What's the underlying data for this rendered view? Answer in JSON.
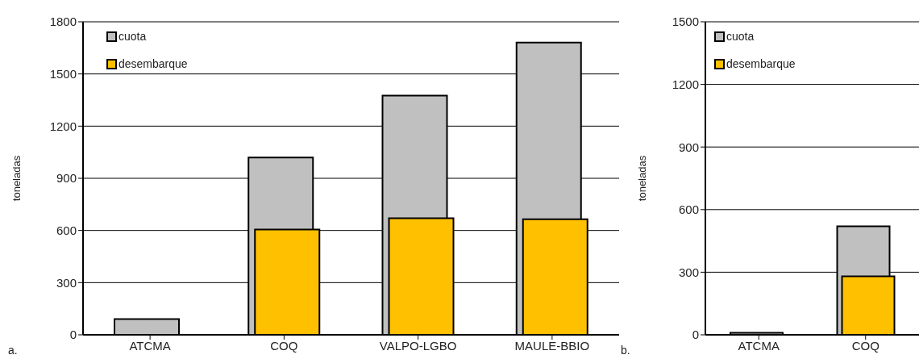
{
  "chart_data": [
    {
      "type": "bar",
      "categories": [
        "ATCMA",
        "COQ",
        "VALPO-LGBO",
        "MAULE-BBIO"
      ],
      "ylabel": "toneladas",
      "ylim": [
        0,
        1800
      ],
      "yticks": [
        0,
        300,
        600,
        900,
        1200,
        1500,
        1800
      ],
      "grid": "y",
      "legend": "top left",
      "annotations": [
        "a."
      ],
      "series": [
        {
          "name": "cuota",
          "color": "#c0c0c0",
          "values": [
            90,
            1020,
            1375,
            1680
          ]
        },
        {
          "name": "desembarque",
          "color": "#ffc000",
          "values": [
            0,
            605,
            670,
            665
          ]
        }
      ]
    },
    {
      "type": "bar",
      "categories": [
        "ATCMA",
        "COQ"
      ],
      "ylabel": "toneladas",
      "ylim": [
        0,
        1500
      ],
      "yticks": [
        0,
        300,
        600,
        900,
        1200,
        1500
      ],
      "grid": "y",
      "legend": "top left",
      "annotations": [
        "b."
      ],
      "series": [
        {
          "name": "cuota",
          "color": "#c0c0c0",
          "values": [
            10,
            520
          ]
        },
        {
          "name": "desembarque",
          "color": "#ffc000",
          "values": [
            null,
            280
          ]
        }
      ]
    }
  ]
}
